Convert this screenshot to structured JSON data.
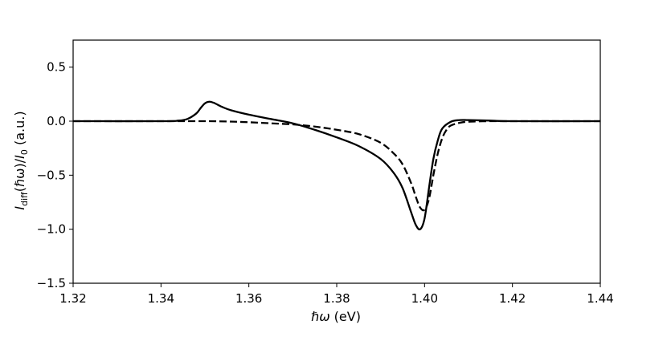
{
  "chart_data": {
    "type": "line",
    "title": "",
    "xlim": [
      1.32,
      1.44
    ],
    "ylim": [
      -1.5,
      0.75
    ],
    "x_ticks": [
      1.32,
      1.34,
      1.36,
      1.38,
      1.4,
      1.42,
      1.44
    ],
    "x_tick_labels": [
      "1.32",
      "1.34",
      "1.36",
      "1.38",
      "1.40",
      "1.42",
      "1.44"
    ],
    "y_ticks": [
      0.5,
      0.0,
      -0.5,
      -1.0,
      -1.5
    ],
    "y_tick_labels": [
      "0.5",
      "0.0",
      "−0.5",
      "−1.0",
      "−1.5"
    ],
    "xlabel": {
      "main": "ℏω",
      "rest": " (eV)"
    },
    "ylabel": {
      "i1": "I",
      "sub1": "diff",
      "mid": "(ℏω)/",
      "i2": "I",
      "sub2": "0",
      "rest": " (a.u.)"
    },
    "grid": false,
    "legend": "none",
    "series": [
      {
        "style": "solid",
        "color": "#000000",
        "x": [
          1.32,
          1.34,
          1.344,
          1.346,
          1.348,
          1.349,
          1.35,
          1.351,
          1.352,
          1.353,
          1.354,
          1.356,
          1.36,
          1.365,
          1.37,
          1.375,
          1.38,
          1.385,
          1.39,
          1.393,
          1.395,
          1.397,
          1.398,
          1.399,
          1.4,
          1.401,
          1.402,
          1.403,
          1.404,
          1.406,
          1.408,
          1.41,
          1.415,
          1.42,
          1.44
        ],
        "y": [
          0.0,
          0.0,
          0.005,
          0.02,
          0.07,
          0.12,
          0.165,
          0.18,
          0.17,
          0.15,
          0.13,
          0.1,
          0.06,
          0.02,
          -0.02,
          -0.08,
          -0.15,
          -0.23,
          -0.35,
          -0.48,
          -0.62,
          -0.85,
          -0.96,
          -1.0,
          -0.9,
          -0.62,
          -0.35,
          -0.18,
          -0.07,
          -0.005,
          0.01,
          0.01,
          0.005,
          0.0,
          0.0
        ]
      },
      {
        "style": "dashed",
        "color": "#000000",
        "x": [
          1.32,
          1.34,
          1.35,
          1.355,
          1.36,
          1.365,
          1.37,
          1.375,
          1.38,
          1.385,
          1.39,
          1.393,
          1.395,
          1.397,
          1.398,
          1.399,
          1.4,
          1.401,
          1.402,
          1.403,
          1.404,
          1.405,
          1.406,
          1.408,
          1.41,
          1.415,
          1.42,
          1.44
        ],
        "y": [
          0.0,
          0.0,
          0.0,
          -0.003,
          -0.01,
          -0.02,
          -0.03,
          -0.05,
          -0.08,
          -0.12,
          -0.2,
          -0.3,
          -0.4,
          -0.58,
          -0.7,
          -0.8,
          -0.82,
          -0.72,
          -0.5,
          -0.3,
          -0.16,
          -0.08,
          -0.04,
          -0.015,
          -0.005,
          0.0,
          0.0,
          0.0
        ]
      }
    ]
  }
}
